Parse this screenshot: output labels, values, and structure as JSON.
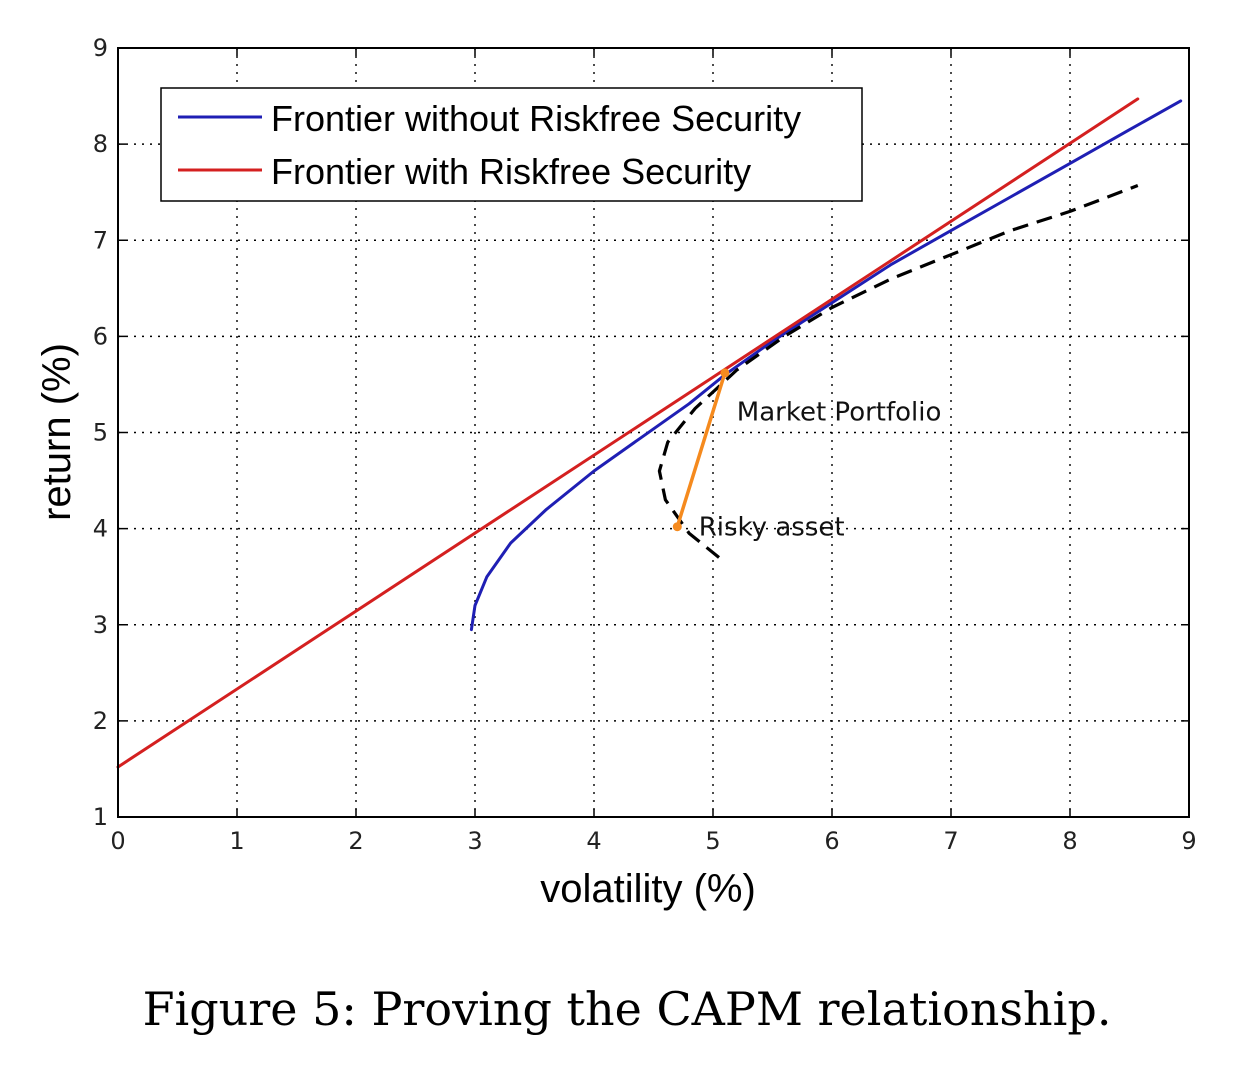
{
  "caption": "Figure 5: Proving the CAPM relationship.",
  "chart_data": {
    "type": "line",
    "xlabel": "volatility (%)",
    "ylabel": "return (%)",
    "xlim": [
      0,
      9
    ],
    "ylim": [
      1,
      9
    ],
    "xticks": [
      "0",
      "1",
      "2",
      "3",
      "4",
      "5",
      "6",
      "7",
      "8",
      "9"
    ],
    "yticks": [
      "1",
      "2",
      "3",
      "4",
      "5",
      "6",
      "7",
      "8",
      "9"
    ],
    "grid": true,
    "legend_position": "top-left",
    "series": [
      {
        "name": "Frontier without Riskfree Security",
        "color": "#1f1fb4",
        "style": "solid",
        "points": [
          [
            2.97,
            2.95
          ],
          [
            3.0,
            3.2
          ],
          [
            3.1,
            3.5
          ],
          [
            3.3,
            3.85
          ],
          [
            3.6,
            4.2
          ],
          [
            4.0,
            4.6
          ],
          [
            4.4,
            4.95
          ],
          [
            4.8,
            5.3
          ],
          [
            5.1,
            5.6
          ],
          [
            5.5,
            5.95
          ],
          [
            6.0,
            6.35
          ],
          [
            6.5,
            6.75
          ],
          [
            7.0,
            7.1
          ],
          [
            7.5,
            7.45
          ],
          [
            8.0,
            7.8
          ],
          [
            8.5,
            8.15
          ],
          [
            8.93,
            8.45
          ]
        ]
      },
      {
        "name": "Frontier with Riskfree Security",
        "color": "#d42020",
        "style": "solid",
        "points": [
          [
            0,
            1.52
          ],
          [
            8.57,
            8.47
          ]
        ]
      },
      {
        "name": "",
        "color": "#000000",
        "style": "dashed",
        "points": [
          [
            5.05,
            3.7
          ],
          [
            4.8,
            3.95
          ],
          [
            4.6,
            4.3
          ],
          [
            4.55,
            4.6
          ],
          [
            4.62,
            4.9
          ],
          [
            4.85,
            5.25
          ],
          [
            5.2,
            5.65
          ],
          [
            5.6,
            6.0
          ],
          [
            6.0,
            6.3
          ],
          [
            6.5,
            6.6
          ],
          [
            7.0,
            6.85
          ],
          [
            7.5,
            7.1
          ],
          [
            8.0,
            7.3
          ],
          [
            8.57,
            7.57
          ]
        ]
      },
      {
        "name": "",
        "color": "#f58a1e",
        "style": "solid",
        "points": [
          [
            4.7,
            4.02
          ],
          [
            5.1,
            5.62
          ]
        ]
      }
    ],
    "annotations": [
      {
        "text": "Market Portfolio",
        "x": 5.2,
        "y": 5.22
      },
      {
        "text": "Risky asset",
        "x": 4.88,
        "y": 4.02
      }
    ]
  }
}
